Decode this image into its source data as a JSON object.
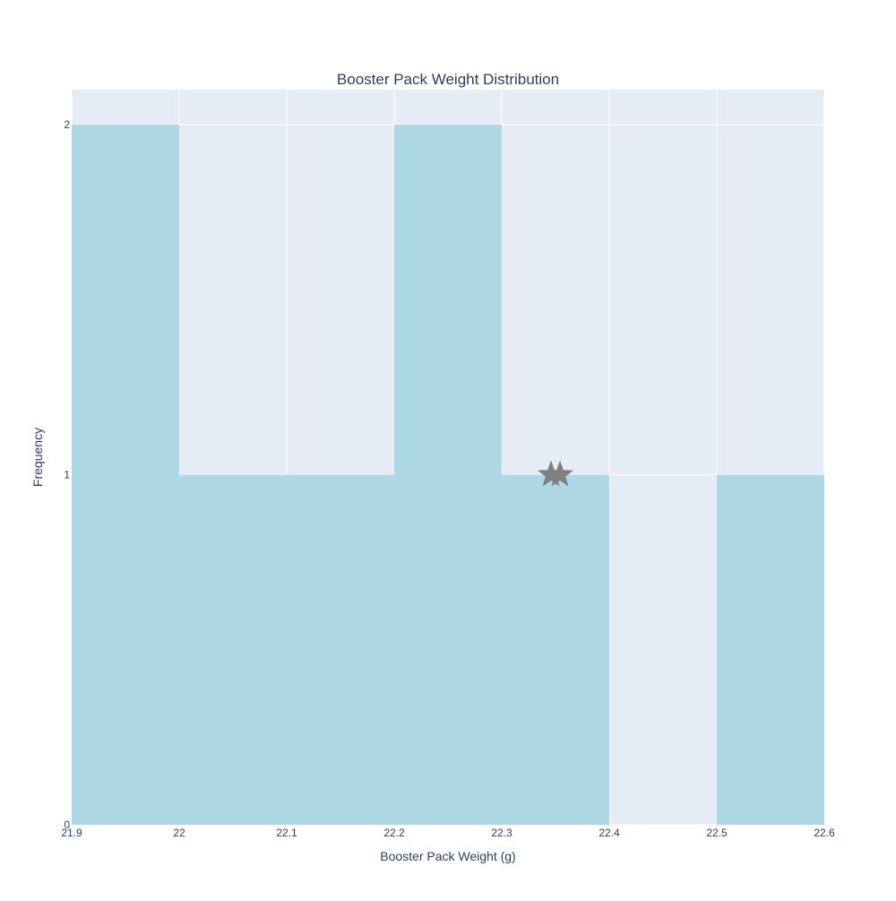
{
  "chart_data": {
    "type": "bar",
    "subtype": "histogram",
    "title": "Booster Pack Weight Distribution",
    "xlabel": "Booster Pack Weight (g)",
    "ylabel": "Frequency",
    "xlim": [
      21.9,
      22.6
    ],
    "ylim": [
      0,
      2.1
    ],
    "x_ticks": [
      "21.9",
      "22",
      "22.1",
      "22.2",
      "22.3",
      "22.4",
      "22.5",
      "22.6"
    ],
    "y_ticks": [
      "0",
      "1",
      "2"
    ],
    "bins": [
      {
        "start": 21.9,
        "end": 22.0,
        "count": 2
      },
      {
        "start": 22.0,
        "end": 22.1,
        "count": 1
      },
      {
        "start": 22.1,
        "end": 22.2,
        "count": 1
      },
      {
        "start": 22.2,
        "end": 22.3,
        "count": 2
      },
      {
        "start": 22.3,
        "end": 22.4,
        "count": 1
      },
      {
        "start": 22.4,
        "end": 22.5,
        "count": 0
      },
      {
        "start": 22.5,
        "end": 22.6,
        "count": 1
      }
    ],
    "annotations": [
      {
        "type": "marker",
        "symbol": "star",
        "x": 22.35,
        "y": 1,
        "count": 2
      }
    ],
    "grid": true,
    "colors": {
      "bar": "#add8e6",
      "plot_bg": "#e5ecf6",
      "grid": "#ffffff",
      "marker": "#808080",
      "text": "#2a3f5f"
    }
  }
}
